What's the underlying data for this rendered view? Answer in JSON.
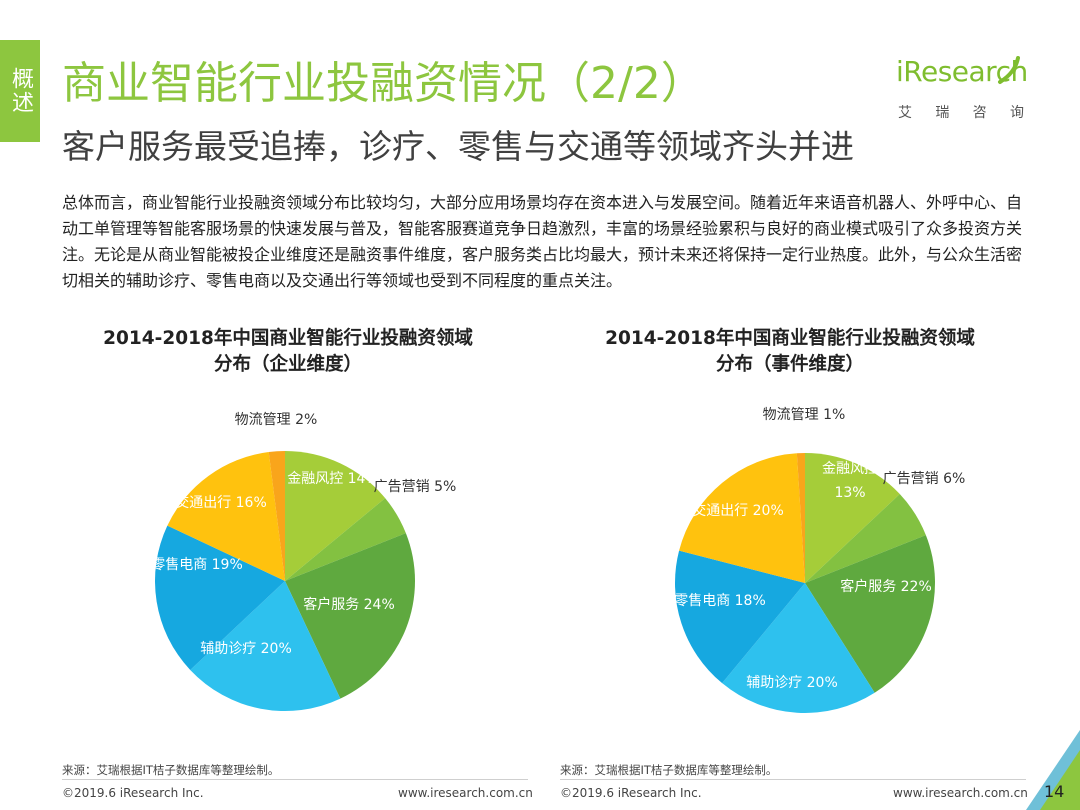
{
  "side_tab": {
    "label": "概述"
  },
  "header": {
    "title": "商业智能行业投融资情况（2/2）",
    "subtitle": "客户服务最受追捧，诊疗、零售与交通等领域齐头并进",
    "logo": {
      "wordmark": "iResearch",
      "chars": [
        "艾",
        "瑞",
        "咨",
        "询"
      ]
    }
  },
  "intro": "总体而言，商业智能行业投融资领域分布比较均匀，大部分应用场景均存在资本进入与发展空间。随着近年来语音机器人、外呼中心、自动工单管理等智能客服场景的快速发展与普及，智能客服赛道竞争日趋激烈，丰富的场景经验累积与良好的商业模式吸引了众多投资方关注。无论是从商业智能被投企业维度还是融资事件维度，客户服务类占比均最大，预计未来还将保持一定行业热度。此外，与公众生活密切相关的辅助诊疗、零售电商以及交通出行等领域也受到不同程度的重点关注。",
  "colors": {
    "brand": "#8dc63f",
    "slices": [
      "#a5cd39",
      "#83c141",
      "#5fa93f",
      "#2ec1ee",
      "#16a8e0",
      "#ffc20e",
      "#f9a51b"
    ]
  },
  "chart_data": [
    {
      "type": "pie",
      "title": "2014-2018年中国商业智能行业投融资领域\n分布（企业维度）",
      "slices": [
        {
          "label": "金融风控 14%",
          "value": 14
        },
        {
          "label": "广告营销 5%",
          "value": 5
        },
        {
          "label": "客户服务 24%",
          "value": 24
        },
        {
          "label": "辅助诊疗 20%",
          "value": 20
        },
        {
          "label": "零售电商 19%",
          "value": 19
        },
        {
          "label": "交通出行 16%",
          "value": 16
        },
        {
          "label": "物流管理 2%",
          "value": 2
        }
      ],
      "source": "来源：艾瑞根据IT桔子数据库等整理绘制。"
    },
    {
      "type": "pie",
      "title": "2014-2018年中国商业智能行业投融资领域\n分布（事件维度）",
      "slices": [
        {
          "label": "金融风控\n13%",
          "value": 13
        },
        {
          "label": "广告营销 6%",
          "value": 6
        },
        {
          "label": "客户服务 22%",
          "value": 22
        },
        {
          "label": "辅助诊疗 20%",
          "value": 20
        },
        {
          "label": "零售电商 18%",
          "value": 18
        },
        {
          "label": "交通出行 20%",
          "value": 20
        },
        {
          "label": "物流管理 1%",
          "value": 1
        }
      ],
      "source": "来源：艾瑞根据IT桔子数据库等整理绘制。"
    }
  ],
  "footer": {
    "copyright": "©2019.6 iResearch Inc.",
    "url": "www.iresearch.com.cn",
    "page_number": "14"
  }
}
